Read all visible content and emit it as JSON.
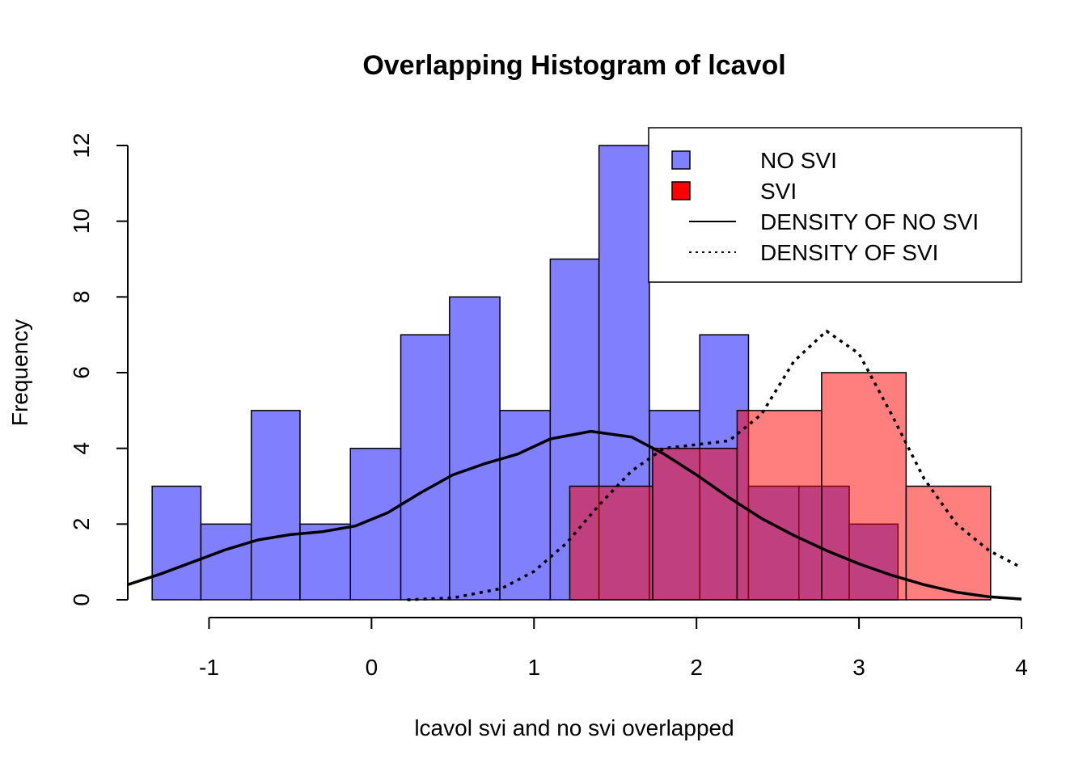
{
  "chart_data": {
    "type": "bar",
    "title": "Overlapping Histogram of lcavol",
    "xlabel": "lcavol svi and no svi overlapped",
    "ylabel": "Frequency",
    "xlim": [
      -1.5,
      4.0
    ],
    "ylim": [
      0,
      12
    ],
    "x_ticks": [
      -1,
      0,
      1,
      2,
      3,
      4
    ],
    "y_ticks": [
      0,
      2,
      4,
      6,
      8,
      10,
      12
    ],
    "grid": false,
    "legend": {
      "placement": "top-right",
      "entries": [
        {
          "label": "NO SVI",
          "kind": "fill",
          "color": "#8080ff"
        },
        {
          "label": "SVI",
          "kind": "fill",
          "color": "#ff0000"
        },
        {
          "label": "DENSITY OF NO SVI",
          "kind": "line",
          "style": "solid"
        },
        {
          "label": "DENSITY OF SVI",
          "kind": "line",
          "style": "dotted"
        }
      ]
    },
    "series": [
      {
        "name": "NO SVI",
        "color": "#8080ff",
        "bin_edges": [
          -1.35,
          -1.05,
          -0.74,
          -0.44,
          -0.13,
          0.18,
          0.48,
          0.79,
          1.1,
          1.4,
          1.71,
          2.02,
          2.32,
          2.63,
          2.94,
          3.24
        ],
        "counts": [
          3,
          2,
          5,
          2,
          4,
          7,
          8,
          5,
          9,
          12,
          5,
          7,
          3,
          3,
          2
        ]
      },
      {
        "name": "SVI",
        "color": "#ff0000",
        "bin_edges": [
          1.22,
          1.73,
          2.25,
          2.77,
          3.29,
          3.81
        ],
        "counts": [
          3,
          4,
          5,
          6,
          3
        ]
      },
      {
        "name": "DENSITY OF NO SVI",
        "style": "solid",
        "x": [
          -1.5,
          -1.3,
          -1.1,
          -0.9,
          -0.7,
          -0.5,
          -0.3,
          -0.1,
          0.1,
          0.3,
          0.5,
          0.7,
          0.9,
          1.1,
          1.35,
          1.6,
          1.8,
          2.0,
          2.2,
          2.4,
          2.6,
          2.8,
          3.0,
          3.2,
          3.4,
          3.6,
          3.8,
          4.0
        ],
        "y": [
          0.4,
          0.68,
          1.0,
          1.32,
          1.58,
          1.72,
          1.8,
          1.95,
          2.3,
          2.82,
          3.3,
          3.6,
          3.85,
          4.25,
          4.45,
          4.3,
          3.85,
          3.3,
          2.7,
          2.15,
          1.7,
          1.3,
          0.95,
          0.65,
          0.4,
          0.2,
          0.08,
          0.02
        ]
      },
      {
        "name": "DENSITY OF SVI",
        "style": "dotted",
        "x": [
          0.22,
          0.5,
          0.8,
          1.0,
          1.2,
          1.4,
          1.6,
          1.8,
          2.0,
          2.2,
          2.4,
          2.6,
          2.8,
          3.0,
          3.2,
          3.4,
          3.6,
          3.8,
          4.0
        ],
        "y": [
          0.0,
          0.05,
          0.3,
          0.75,
          1.5,
          2.5,
          3.4,
          4.0,
          4.1,
          4.2,
          4.9,
          6.3,
          7.1,
          6.5,
          4.9,
          3.2,
          2.0,
          1.3,
          0.85
        ]
      }
    ]
  }
}
